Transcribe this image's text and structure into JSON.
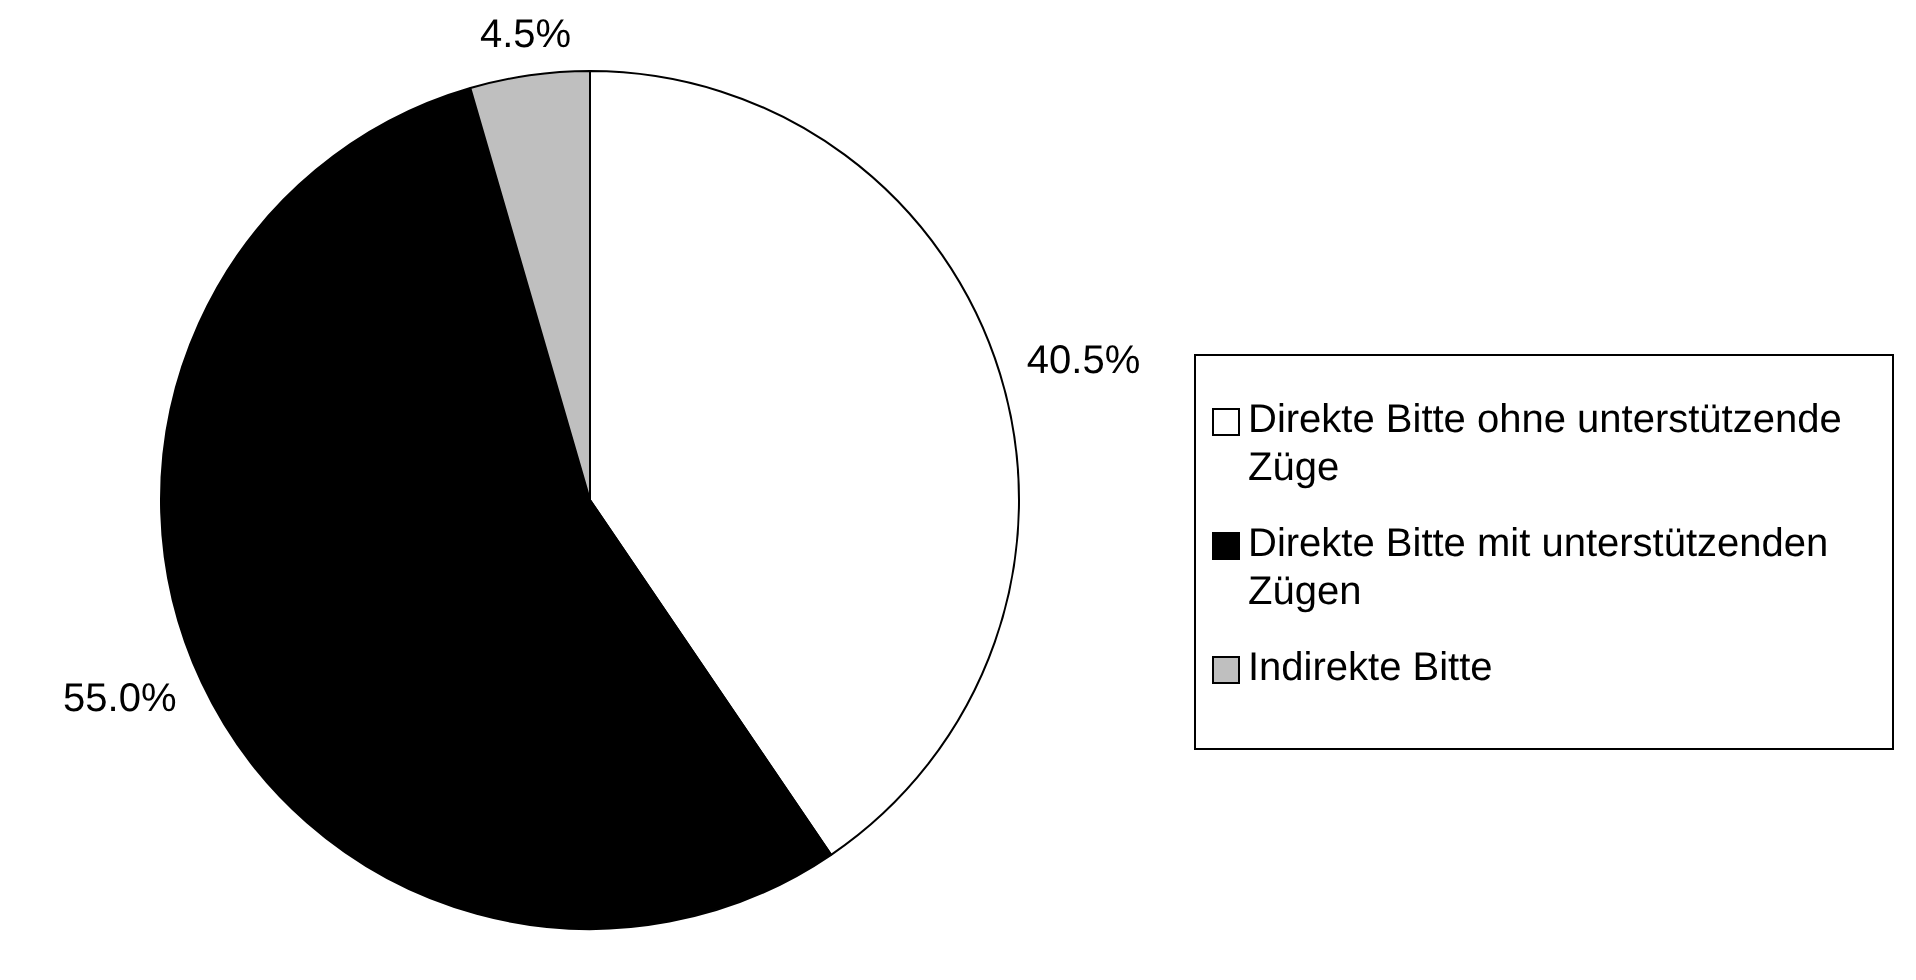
{
  "chart_data": {
    "type": "pie",
    "categories": [
      "Direkte Bitte ohne unterstützende Züge",
      "Direkte Bitte mit unterstützenden Zügen",
      "Indirekte Bitte"
    ],
    "values": [
      40.5,
      55.0,
      4.5
    ],
    "colors": [
      "#ffffff",
      "#000000",
      "#bfbfbf"
    ],
    "value_labels": [
      "40.5%",
      "55.0%",
      "4.5%"
    ],
    "legend": "right"
  }
}
